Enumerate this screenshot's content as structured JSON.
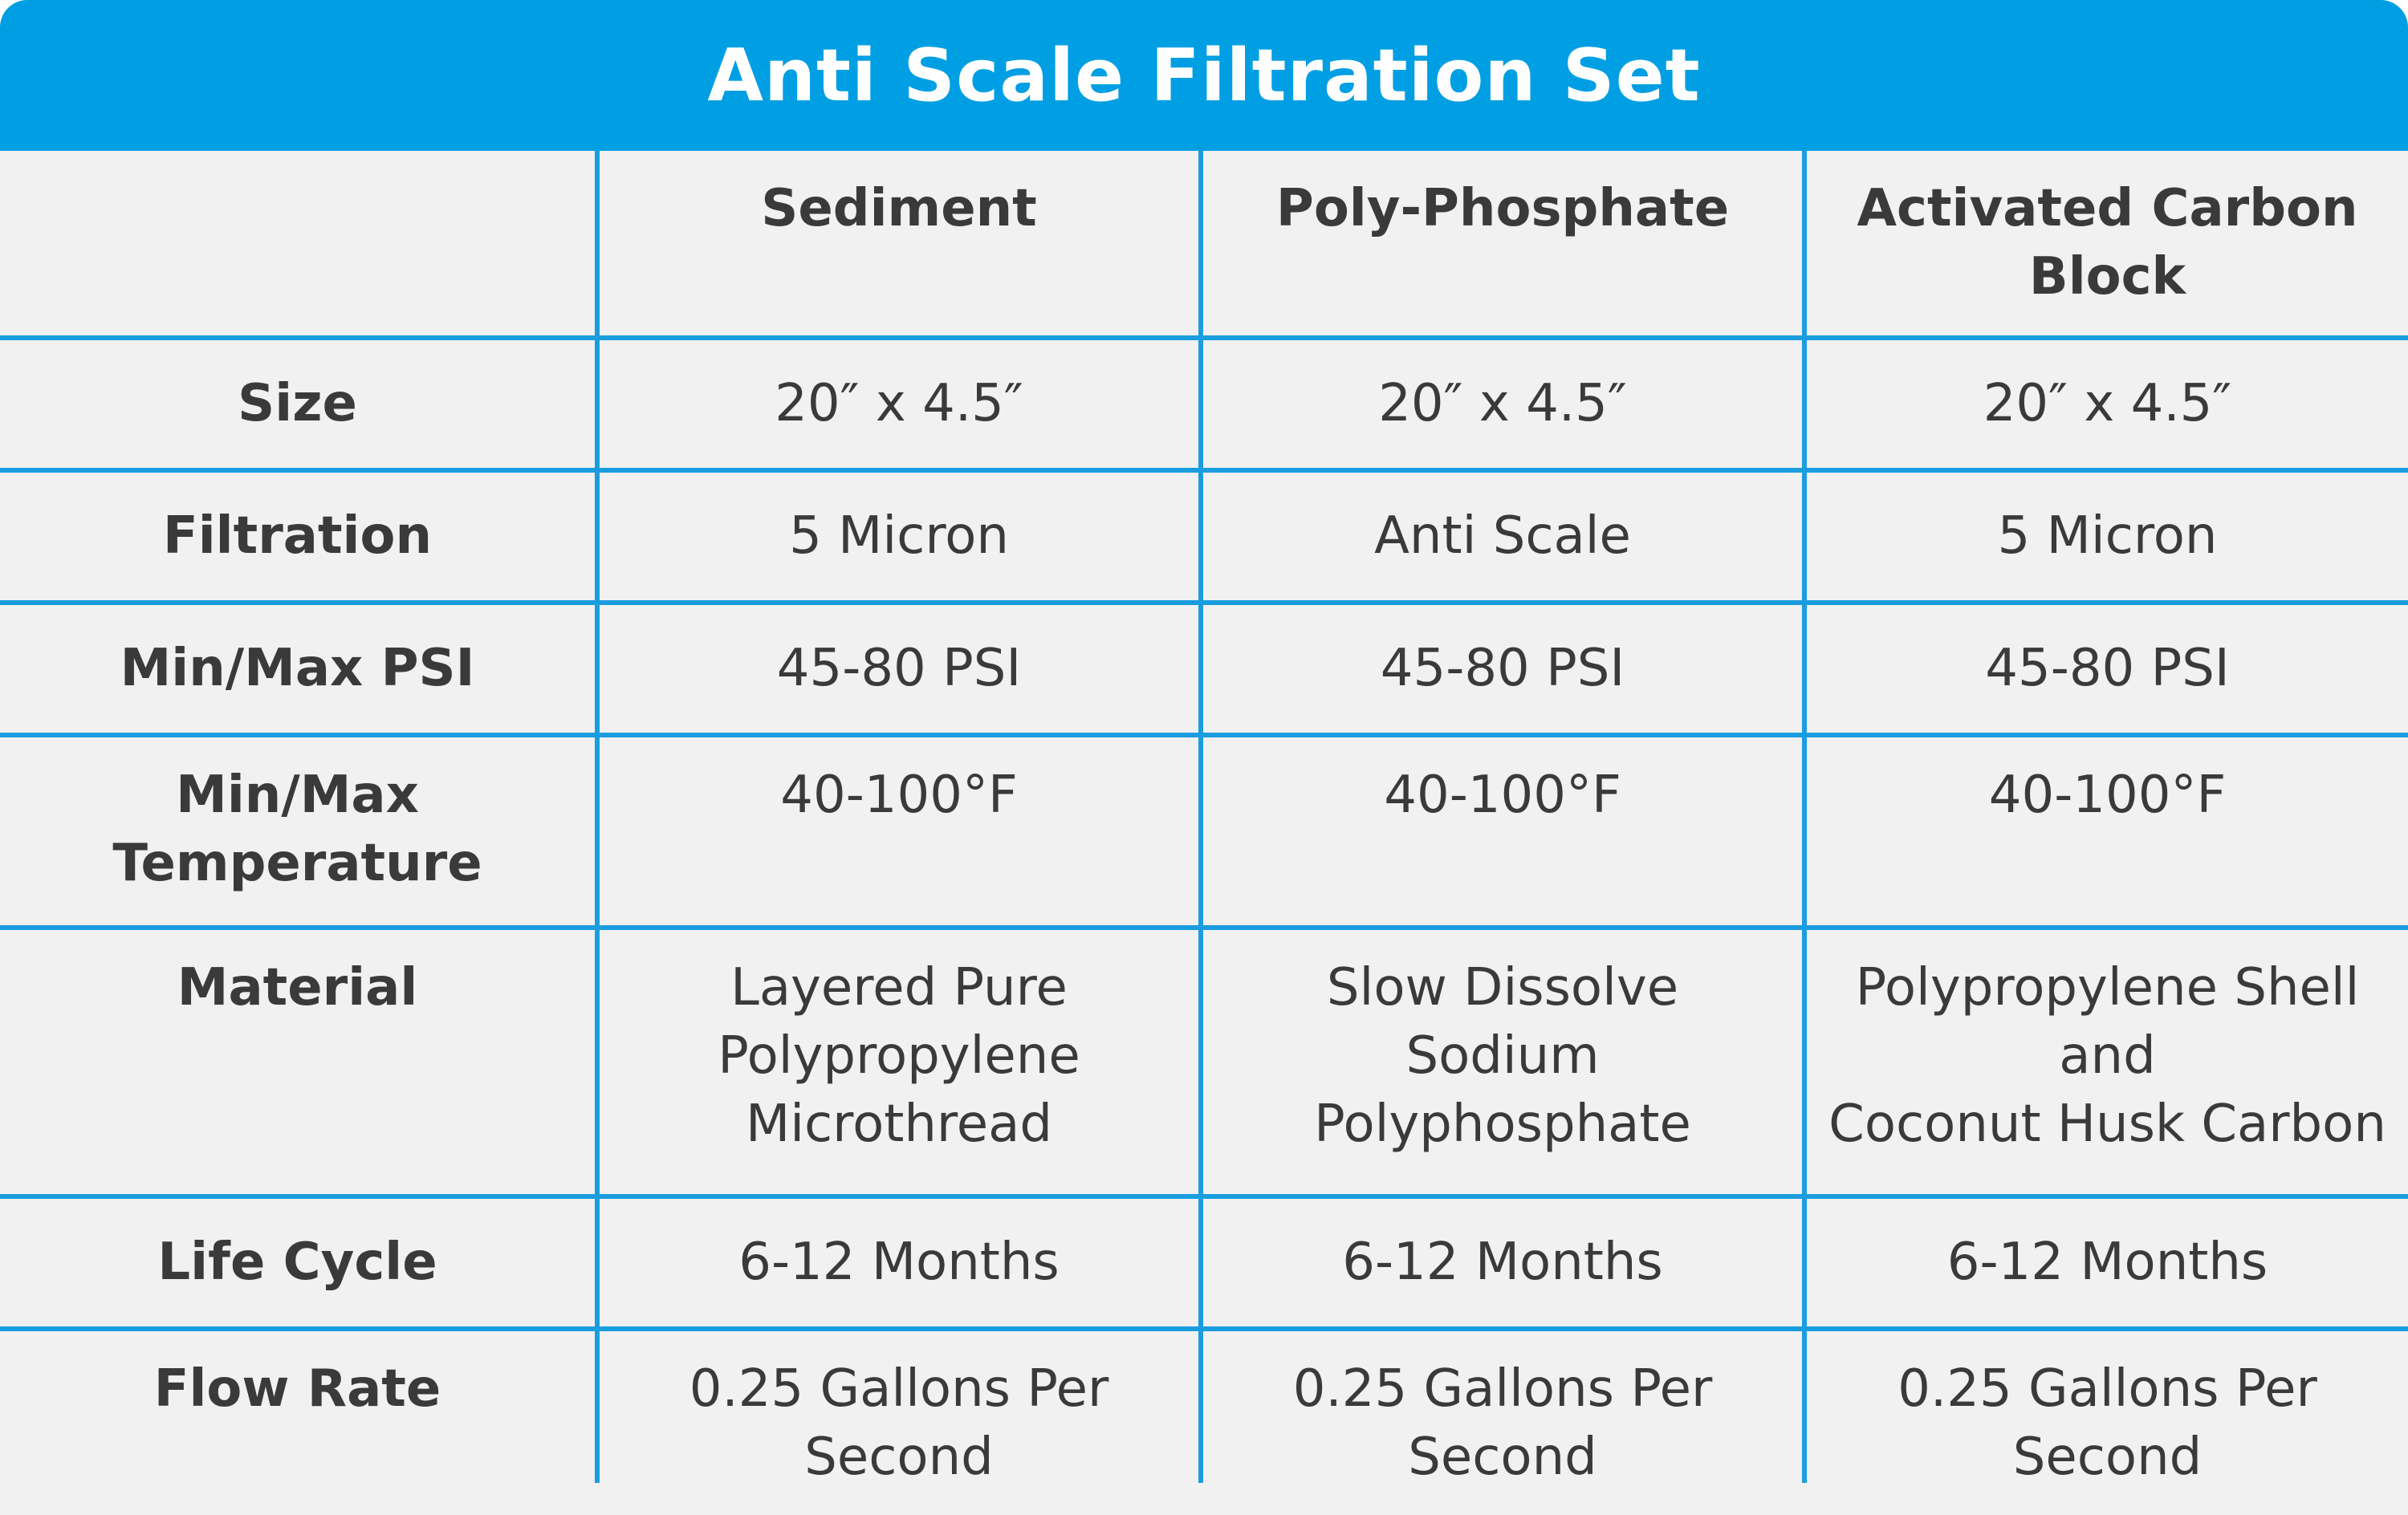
{
  "title": "Anti Scale Filtration Set",
  "columns": [
    "",
    "Sediment",
    "Poly-Phosphate",
    "Activated Carbon\nBlock"
  ],
  "rows": [
    {
      "label": "Size",
      "values": [
        "20″ x 4.5″",
        "20″ x 4.5″",
        "20″ x 4.5″"
      ]
    },
    {
      "label": "Filtration",
      "values": [
        "5 Micron",
        "Anti Scale",
        "5 Micron"
      ]
    },
    {
      "label": "Min/Max PSI",
      "values": [
        "45-80 PSI",
        "45-80 PSI",
        "45-80 PSI"
      ]
    },
    {
      "label": "Min/Max\nTemperature",
      "values": [
        "40-100°F",
        "40-100°F",
        "40-100°F"
      ]
    },
    {
      "label": "Material",
      "values": [
        "Layered Pure\nPolypropylene\nMicrothread",
        "Slow Dissolve\nSodium\nPolyphosphate",
        "Polypropylene Shell\nand\nCoconut Husk Carbon"
      ]
    },
    {
      "label": "Life Cycle",
      "values": [
        "6-12 Months",
        "6-12 Months",
        "6-12 Months"
      ]
    },
    {
      "label": "Flow Rate",
      "values": [
        "0.25 Gallons Per\nSecond",
        "0.25 Gallons Per\nSecond",
        "0.25 Gallons Per\nSecond"
      ]
    }
  ],
  "colors": {
    "accent": "#009fe3",
    "gridline": "#1a9ddf",
    "background": "#f1f1f1",
    "text": "#3a3a3a"
  }
}
